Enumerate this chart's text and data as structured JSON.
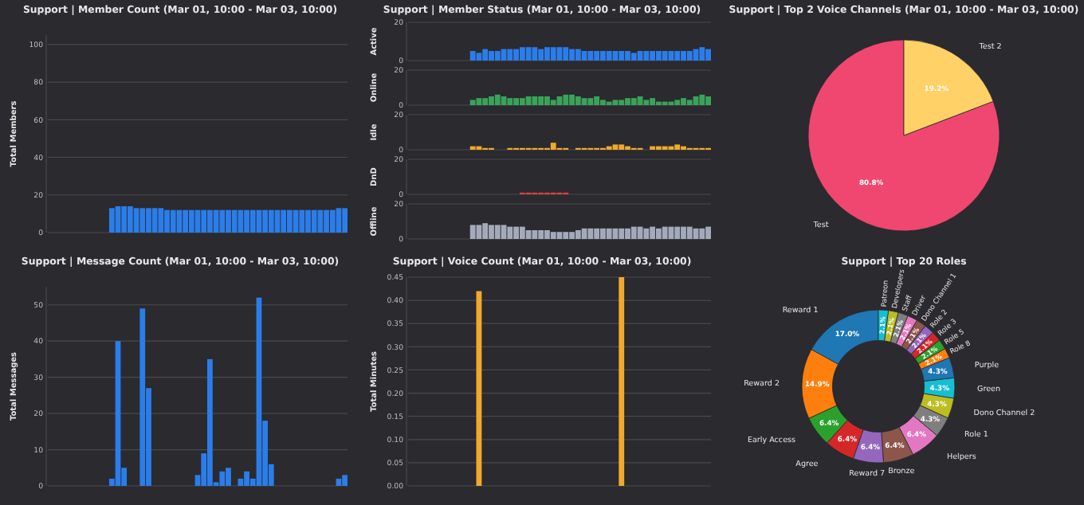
{
  "chart_data": [
    {
      "type": "bar",
      "title": "Support | Member Count (Mar 01, 10:00 - Mar 03, 10:00)",
      "ylabel": "Total Members",
      "categories": [
        null,
        null,
        null,
        null,
        null,
        null,
        null,
        null,
        null,
        null,
        null,
        null,
        null,
        null,
        null,
        null,
        null,
        null,
        null,
        null,
        null,
        null,
        null,
        null,
        null,
        null,
        null,
        null,
        null,
        null,
        null,
        null,
        null,
        null,
        null,
        null,
        null,
        null,
        null,
        null,
        null,
        null,
        null,
        null,
        null,
        null,
        null,
        null,
        null
      ],
      "values": [
        null,
        null,
        null,
        null,
        null,
        null,
        null,
        null,
        null,
        null,
        13,
        14,
        14,
        14,
        13,
        13,
        13,
        13,
        13,
        12,
        12,
        12,
        12,
        12,
        12,
        12,
        12,
        12,
        12,
        12,
        12,
        12,
        12,
        12,
        12,
        12,
        12,
        12,
        12,
        12,
        12,
        12,
        12,
        12,
        12,
        12,
        12,
        13,
        13
      ],
      "color": "#2b7de9",
      "ylim": [
        0,
        105
      ],
      "yticks": [
        0,
        20,
        40,
        60,
        80,
        100
      ],
      "grid": "y"
    },
    {
      "type": "bar",
      "title": "Support | Member Status (Mar 01, 10:00 - Mar 03, 10:00)",
      "ylabel": "Active",
      "categories": [
        null,
        null,
        null,
        null,
        null,
        null,
        null,
        null,
        null,
        null,
        null,
        null,
        null,
        null,
        null,
        null,
        null,
        null,
        null,
        null,
        null,
        null,
        null,
        null,
        null,
        null,
        null,
        null,
        null,
        null,
        null,
        null,
        null,
        null,
        null,
        null,
        null,
        null,
        null,
        null,
        null,
        null,
        null,
        null,
        null,
        null,
        null,
        null,
        null
      ],
      "values": [
        null,
        null,
        null,
        null,
        null,
        null,
        null,
        null,
        null,
        null,
        5,
        4,
        6,
        5,
        5,
        6,
        6,
        6,
        7,
        7,
        7,
        6,
        7,
        7,
        7,
        7,
        6,
        6,
        5,
        5,
        5,
        5,
        5,
        5,
        5,
        5,
        4,
        5,
        5,
        5,
        5,
        5,
        5,
        5,
        5,
        5,
        6,
        7,
        6
      ],
      "color": "#2b7de9",
      "ylim": [
        0,
        20
      ],
      "yticks": [
        0,
        20
      ],
      "grid": "y"
    },
    {
      "type": "bar",
      "ylabel": "Online",
      "categories": [
        null,
        null,
        null,
        null,
        null,
        null,
        null,
        null,
        null,
        null,
        null,
        null,
        null,
        null,
        null,
        null,
        null,
        null,
        null,
        null,
        null,
        null,
        null,
        null,
        null,
        null,
        null,
        null,
        null,
        null,
        null,
        null,
        null,
        null,
        null,
        null,
        null,
        null,
        null,
        null,
        null,
        null,
        null,
        null,
        null,
        null,
        null,
        null,
        null
      ],
      "values": [
        null,
        null,
        null,
        null,
        null,
        null,
        null,
        null,
        null,
        null,
        3,
        4,
        4,
        5,
        6,
        5,
        4,
        4,
        4,
        5,
        5,
        5,
        5,
        3,
        5,
        6,
        6,
        5,
        4,
        4,
        5,
        3,
        2,
        3,
        3,
        4,
        4,
        5,
        3,
        4,
        2,
        2,
        2,
        3,
        4,
        3,
        5,
        6,
        5
      ],
      "color": "#3aa35a",
      "ylim": [
        0,
        20
      ],
      "yticks": [
        0,
        20
      ],
      "grid": "y"
    },
    {
      "type": "bar",
      "ylabel": "Idle",
      "categories": [
        null,
        null,
        null,
        null,
        null,
        null,
        null,
        null,
        null,
        null,
        null,
        null,
        null,
        null,
        null,
        null,
        null,
        null,
        null,
        null,
        null,
        null,
        null,
        null,
        null,
        null,
        null,
        null,
        null,
        null,
        null,
        null,
        null,
        null,
        null,
        null,
        null,
        null,
        null,
        null,
        null,
        null,
        null,
        null,
        null,
        null,
        null,
        null,
        null
      ],
      "values": [
        null,
        null,
        null,
        null,
        null,
        null,
        null,
        null,
        null,
        null,
        2,
        2,
        1,
        1,
        0,
        0,
        1,
        1,
        1,
        1,
        1,
        1,
        1,
        4,
        1,
        1,
        0,
        1,
        1,
        1,
        1,
        1,
        2,
        3,
        3,
        2,
        1,
        1,
        0,
        2,
        2,
        2,
        2,
        3,
        2,
        1,
        1,
        1,
        1
      ],
      "color": "#f0a92c",
      "ylim": [
        0,
        20
      ],
      "yticks": [
        0,
        20
      ],
      "grid": "y"
    },
    {
      "type": "bar",
      "ylabel": "DnD",
      "categories": [
        null,
        null,
        null,
        null,
        null,
        null,
        null,
        null,
        null,
        null,
        null,
        null,
        null,
        null,
        null,
        null,
        null,
        null,
        null,
        null,
        null,
        null,
        null,
        null,
        null,
        null,
        null,
        null,
        null,
        null,
        null,
        null,
        null,
        null,
        null,
        null,
        null,
        null,
        null,
        null,
        null,
        null,
        null,
        null,
        null,
        null,
        null,
        null,
        null
      ],
      "values": [
        null,
        null,
        null,
        null,
        null,
        null,
        null,
        null,
        null,
        null,
        0,
        0,
        0,
        0,
        0,
        0,
        0,
        0,
        1,
        1,
        1,
        1,
        1,
        1,
        1,
        1,
        0,
        0,
        0,
        0,
        0,
        0,
        0,
        0,
        0,
        0,
        0,
        0,
        0,
        0,
        0,
        0,
        0,
        0,
        0,
        0,
        0,
        0,
        0
      ],
      "color": "#e0413f",
      "ylim": [
        0,
        20
      ],
      "yticks": [
        0,
        20
      ],
      "grid": "y"
    },
    {
      "type": "bar",
      "ylabel": "Offline",
      "categories": [
        null,
        null,
        null,
        null,
        null,
        null,
        null,
        null,
        null,
        null,
        null,
        null,
        null,
        null,
        null,
        null,
        null,
        null,
        null,
        null,
        null,
        null,
        null,
        null,
        null,
        null,
        null,
        null,
        null,
        null,
        null,
        null,
        null,
        null,
        null,
        null,
        null,
        null,
        null,
        null,
        null,
        null,
        null,
        null,
        null,
        null,
        null,
        null,
        null
      ],
      "values": [
        null,
        null,
        null,
        null,
        null,
        null,
        null,
        null,
        null,
        null,
        8,
        8,
        9,
        8,
        8,
        8,
        7,
        7,
        7,
        5,
        5,
        5,
        5,
        4,
        4,
        4,
        4,
        5,
        6,
        6,
        6,
        6,
        6,
        6,
        6,
        6,
        7,
        7,
        6,
        7,
        6,
        7,
        7,
        7,
        7,
        7,
        6,
        6,
        7
      ],
      "color": "#a3abbb",
      "ylim": [
        0,
        20
      ],
      "yticks": [
        0,
        20
      ],
      "grid": "y"
    },
    {
      "type": "pie",
      "title": "Support | Top 2 Voice Channels (Mar 01, 10:00 - Mar 03, 10:00)",
      "categories": [
        "Test",
        "Test 2"
      ],
      "values": [
        80.8,
        19.2
      ],
      "value_labels": [
        "80.8%",
        "19.2%"
      ],
      "colors": [
        "#ef476f",
        "#ffd166"
      ]
    },
    {
      "type": "bar",
      "title": "Support | Message Count (Mar 01, 10:00 - Mar 03, 10:00)",
      "ylabel": "Total Messages",
      "categories": [
        null,
        null,
        null,
        null,
        null,
        null,
        null,
        null,
        null,
        null,
        null,
        null,
        null,
        null,
        null,
        null,
        null,
        null,
        null,
        null,
        null,
        null,
        null,
        null,
        null,
        null,
        null,
        null,
        null,
        null,
        null,
        null,
        null,
        null,
        null,
        null,
        null,
        null,
        null,
        null,
        null,
        null,
        null,
        null,
        null,
        null,
        null,
        null,
        null
      ],
      "values": [
        null,
        null,
        null,
        null,
        null,
        null,
        null,
        null,
        null,
        null,
        2,
        40,
        5,
        0,
        0,
        49,
        27,
        0,
        0,
        0,
        0,
        0,
        0,
        0,
        3,
        9,
        35,
        1,
        4,
        5,
        0,
        2,
        4,
        2,
        52,
        18,
        6,
        0,
        0,
        0,
        0,
        0,
        0,
        0,
        0,
        0,
        0,
        2,
        3
      ],
      "color": "#2b7de9",
      "ylim": [
        0,
        55
      ],
      "yticks": [
        0,
        10,
        20,
        30,
        40,
        50
      ],
      "grid": "y"
    },
    {
      "type": "bar",
      "title": "Support | Voice Count (Mar 01, 10:00 - Mar 03, 10:00)",
      "ylabel": "Total Minutes",
      "categories": [
        null,
        null,
        null,
        null,
        null,
        null,
        null,
        null,
        null,
        null,
        null,
        null,
        null,
        null,
        null,
        null,
        null,
        null,
        null,
        null,
        null,
        null,
        null,
        null,
        null,
        null,
        null,
        null,
        null,
        null,
        null,
        null,
        null,
        null,
        null,
        null,
        null,
        null,
        null,
        null,
        null,
        null,
        null,
        null,
        null,
        null,
        null,
        null,
        null
      ],
      "values": [
        null,
        null,
        null,
        null,
        null,
        null,
        null,
        null,
        null,
        null,
        0,
        0.42,
        0,
        0,
        0,
        0,
        0,
        0,
        0,
        0,
        0,
        0,
        0,
        0,
        0,
        0,
        0,
        0,
        0,
        0,
        0,
        0,
        0,
        0,
        0.45,
        0,
        0,
        0,
        0,
        0,
        0,
        0,
        0,
        0,
        0,
        0,
        0,
        0,
        0
      ],
      "color": "#f0a92c",
      "ylim": [
        0,
        0.45
      ],
      "yticks": [
        {
          "value": 0,
          "label": "0.00"
        },
        {
          "value": 0.05,
          "label": "0.05"
        },
        {
          "value": 0.1,
          "label": "0.10"
        },
        {
          "value": 0.15,
          "label": "0.15"
        },
        {
          "value": 0.2,
          "label": "0.20"
        },
        {
          "value": 0.25,
          "label": "0.25"
        },
        {
          "value": 0.3,
          "label": "0.30"
        },
        {
          "value": 0.35,
          "label": "0.35"
        },
        {
          "value": 0.4,
          "label": "0.40"
        },
        {
          "value": 0.45,
          "label": "0.45"
        }
      ],
      "grid": "y"
    },
    {
      "type": "donut",
      "title": "Support | Top 20 Roles",
      "categories": [
        "Reward 1",
        "Reward 2",
        "Early Access",
        "Agree",
        "Reward 7",
        "Bronze",
        "Helpers",
        "Role 1",
        "Dono Channel 2",
        "Green",
        "Purple",
        "Role 8",
        "Role 5",
        "Role 3",
        "Role 2",
        "Dono Channel 1",
        "Driver",
        "Staff",
        "Developers",
        "Patreon"
      ],
      "values": [
        17.0,
        14.9,
        6.4,
        6.4,
        6.4,
        6.4,
        6.4,
        4.3,
        4.3,
        4.3,
        4.3,
        2.1,
        2.1,
        2.1,
        2.1,
        2.1,
        2.1,
        2.1,
        2.1,
        2.1
      ],
      "value_labels": [
        "17.0%",
        "14.9%",
        "6.4%",
        "6.4%",
        "6.4%",
        "6.4%",
        "6.4%",
        "4.3%",
        "4.3%",
        "4.3%",
        "4.3%",
        "2.1%",
        "2.1%",
        "2.1%",
        "2.1%",
        "2.1%",
        "2.1%",
        "2.1%",
        "2.1%",
        "2.1%"
      ],
      "colors": [
        "#1f77b4",
        "#ff7f0e",
        "#2ca02c",
        "#d62728",
        "#9467bd",
        "#8c564b",
        "#e377c2",
        "#7f7f7f",
        "#bcbd22",
        "#17becf",
        "#1f77b4",
        "#ff7f0e",
        "#2ca02c",
        "#d62728",
        "#9467bd",
        "#8c564b",
        "#e377c2",
        "#7f7f7f",
        "#bcbd22",
        "#17becf"
      ]
    }
  ]
}
